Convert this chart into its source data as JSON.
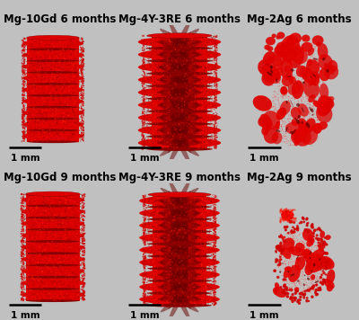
{
  "figure_bg": "#c0c0c0",
  "panel_bg": "#aaaaaa",
  "title_fontsize": 8.5,
  "title_fontweight": "bold",
  "scalebar_fontsize": 7.5,
  "titles": [
    "Mg-10Gd 6 months",
    "Mg-4Y-3RE 6 months",
    "Mg-2Ag 6 months",
    "Mg-10Gd 9 months",
    "Mg-4Y-3RE 9 months",
    "Mg-2Ag 9 months"
  ],
  "styles": [
    "mg10gd_6",
    "mg4y_6",
    "mg2ag_6",
    "mg10gd_9",
    "mg4y_9",
    "mg2ag_9"
  ],
  "red": "#dd0000",
  "dark_red": "#880000",
  "bright_red": "#ff2200"
}
